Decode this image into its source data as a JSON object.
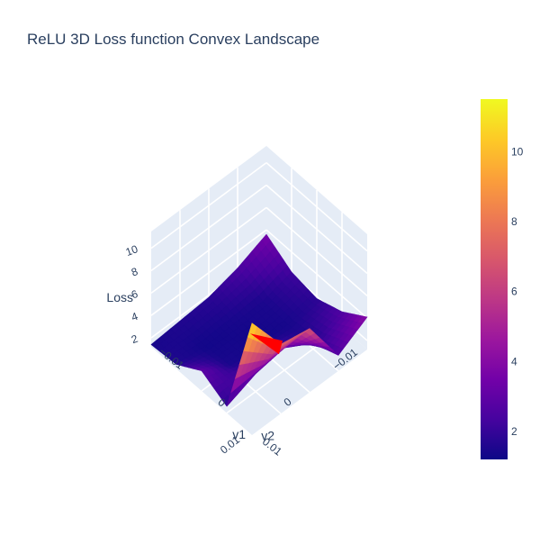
{
  "chart_data": {
    "type": "surface3d",
    "title": "ReLU 3D Loss function Convex Landscape",
    "scene": {
      "x_axis": {
        "title": "v1",
        "ticks": [
          "−0.01",
          "0",
          "0.01"
        ],
        "range": [
          -0.01,
          0.01
        ]
      },
      "y_axis": {
        "title": "v2",
        "ticks": [
          "−0.01",
          "0",
          "0.01"
        ],
        "range": [
          -0.01,
          0.01
        ]
      },
      "z_axis": {
        "title": "Loss",
        "ticks": [
          "2",
          "4",
          "6",
          "8",
          "10"
        ],
        "range": [
          1.2,
          11.5
        ]
      },
      "background": "#e5ecf6",
      "grid_color": "#ffffff"
    },
    "surface": {
      "grid_v1": [
        -0.01,
        -0.005,
        0,
        0.005,
        0.01
      ],
      "grid_v2": [
        -0.01,
        -0.005,
        0,
        0.005,
        0.01
      ],
      "z": [
        [
          3.6,
          2.2,
          1.8,
          2.6,
          4.1
        ],
        [
          2.5,
          1.5,
          1.4,
          1.7,
          2.6
        ],
        [
          1.8,
          1.4,
          1.3,
          3.2,
          6.9
        ],
        [
          1.6,
          1.3,
          1.5,
          2.8,
          7.4
        ],
        [
          1.4,
          1.6,
          3.0,
          1.8,
          11.2
        ]
      ],
      "colorscale": "Plasma",
      "cmin": 1.2,
      "cmax": 11.5
    },
    "marker": {
      "label": "",
      "color": "#ff0000",
      "v1": 0.001,
      "v2": -0.001,
      "loss": 1.4
    },
    "colorbar": {
      "ticks": [
        "2",
        "4",
        "6",
        "8",
        "10"
      ],
      "tick_values": [
        2,
        4,
        6,
        8,
        10
      ]
    }
  }
}
